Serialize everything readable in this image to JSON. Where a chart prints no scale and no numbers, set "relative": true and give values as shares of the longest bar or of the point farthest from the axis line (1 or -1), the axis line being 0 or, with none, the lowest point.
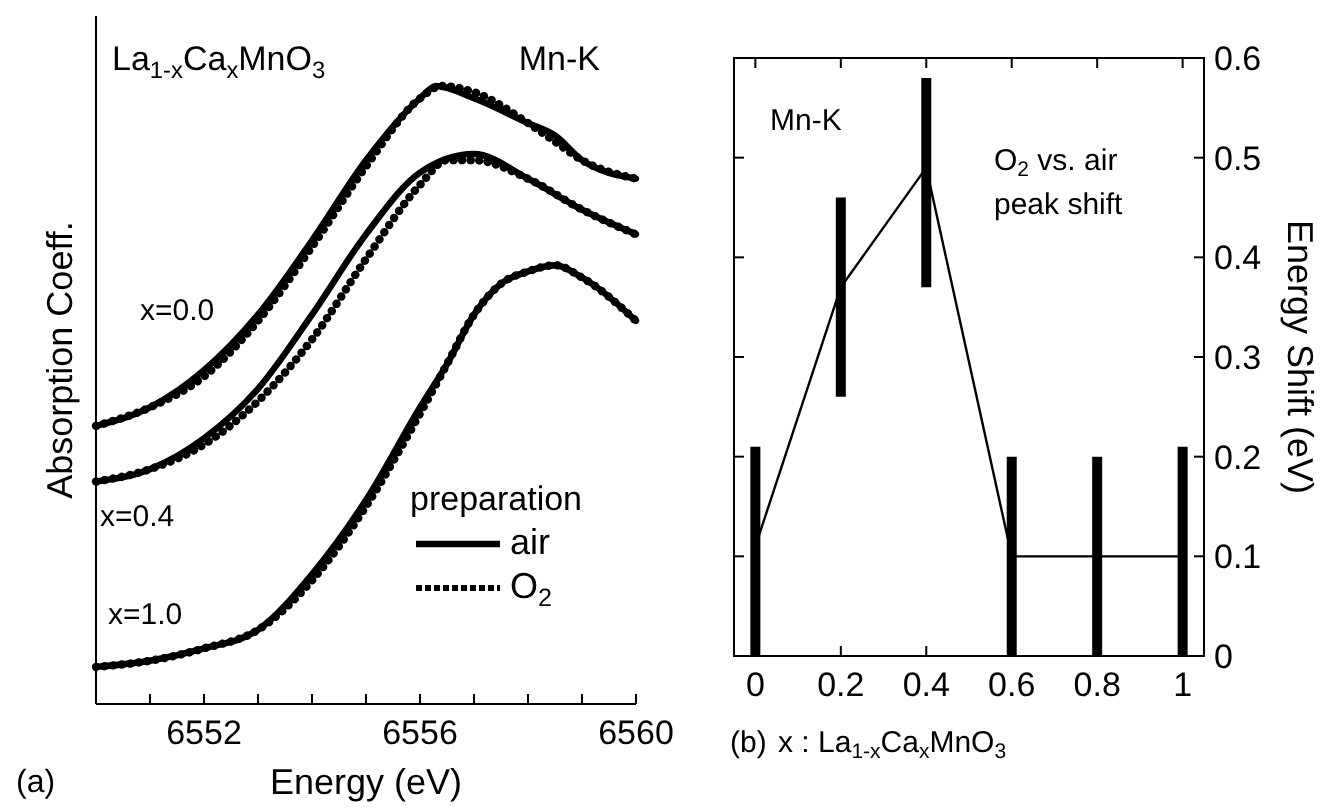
{
  "chart_data": [
    {
      "type": "line",
      "relative": true,
      "xlabel": "Energy (eV)",
      "ylabel": "Absorption Coeff.",
      "legend_title": "preparation",
      "legend": "bottom right",
      "tick_labels": "x",
      "xlim": [
        6550,
        6560
      ],
      "xticks": [
        {
          "value": 6551,
          "label": null
        },
        6552,
        {
          "value": 6553,
          "label": null
        },
        {
          "value": 6554,
          "label": null
        },
        {
          "value": 6555,
          "label": null
        },
        6556,
        {
          "value": 6557,
          "label": null
        },
        {
          "value": 6558,
          "label": null
        },
        {
          "value": 6559,
          "label": null
        },
        6560
      ],
      "annotations": [
        "La$_{1-x}$Ca$_{x}$MnO$_{3}$",
        "Mn-K",
        "x=0.0",
        "x=0.4",
        "x=1.0",
        "(a)"
      ],
      "series": [
        {
          "name": "air",
          "color": "#000000",
          "line_style": "solid",
          "x": [
            6550,
            6551,
            6552,
            6553,
            6554,
            6555,
            6556,
            6556.3,
            6557,
            6558,
            6558.5,
            6559,
            6560
          ],
          "values": [
            0.45,
            0.48,
            0.54,
            0.63,
            0.75,
            0.88,
            0.98,
            1.0,
            0.98,
            0.94,
            0.92,
            0.88,
            0.85
          ]
        },
        {
          "name": "O$_{2}$",
          "color": "#000000",
          "line_style": "dotted",
          "x": [
            6550,
            6551,
            6552,
            6553,
            6554,
            6555,
            6556,
            6556.4,
            6557,
            6558,
            6558.5,
            6559,
            6560
          ],
          "values": [
            0.45,
            0.48,
            0.53,
            0.62,
            0.74,
            0.87,
            0.98,
            1.0,
            0.99,
            0.94,
            0.91,
            0.88,
            0.85
          ]
        },
        {
          "color": "#000000",
          "line_style": "solid",
          "x": [
            6550,
            6551,
            6552,
            6553,
            6554,
            6555,
            6556,
            6557,
            6558,
            6559,
            6560
          ],
          "values": [
            0.36,
            0.38,
            0.43,
            0.51,
            0.63,
            0.76,
            0.86,
            0.89,
            0.85,
            0.8,
            0.76
          ]
        },
        {
          "color": "#000000",
          "line_style": "dotted",
          "x": [
            6550,
            6551,
            6552,
            6553,
            6554,
            6555,
            6556,
            6556.5,
            6557,
            6558,
            6559,
            6560
          ],
          "values": [
            0.36,
            0.38,
            0.42,
            0.49,
            0.59,
            0.72,
            0.84,
            0.88,
            0.88,
            0.85,
            0.8,
            0.76
          ]
        },
        {
          "color": "#000000",
          "line_style": "solid",
          "x": [
            6550,
            6551,
            6552,
            6553,
            6554,
            6555,
            6556,
            6556.5,
            6557,
            6557.5,
            6558,
            6558.5,
            6559,
            6560
          ],
          "values": [
            0.06,
            0.07,
            0.09,
            0.12,
            0.21,
            0.33,
            0.48,
            0.55,
            0.63,
            0.68,
            0.7,
            0.71,
            0.69,
            0.62
          ]
        },
        {
          "color": "#000000",
          "line_style": "dotted",
          "x": [
            6550,
            6551,
            6552,
            6553,
            6554,
            6555,
            6556,
            6556.5,
            6557,
            6557.5,
            6558,
            6558.5,
            6559,
            6560
          ],
          "values": [
            0.06,
            0.07,
            0.09,
            0.12,
            0.2,
            0.32,
            0.47,
            0.55,
            0.63,
            0.68,
            0.7,
            0.71,
            0.69,
            0.62
          ]
        }
      ]
    },
    {
      "type": "line",
      "xlabel": "x : La$_{1-x}$Ca$_{x}$MnO$_{3}$",
      "ylabel": "Energy Shift (eV)",
      "line_style": "solid",
      "xlim": [
        -0.05,
        1.05
      ],
      "xticks": [
        0,
        0.2,
        0.4,
        0.6,
        0.8,
        1
      ],
      "ylim": [
        0,
        0.6
      ],
      "yticks": [
        0,
        0.1,
        0.2,
        0.3,
        0.4,
        0.5,
        0.6
      ],
      "annotations": [
        "Mn-K",
        "O$_{2}$ vs. air",
        "peak shift",
        "(b)"
      ],
      "series": [
        {
          "color": "#000000",
          "x": [
            0,
            0.2,
            0.4,
            0.6,
            0.8,
            1
          ],
          "values": [
            0.11,
            0.37,
            0.49,
            0.1,
            0.1,
            0.1
          ],
          "errors": [
            [
              0,
              0.21
            ],
            [
              0.26,
              0.46
            ],
            [
              0.37,
              0.58
            ],
            [
              0,
              0.2
            ],
            [
              0,
              0.2
            ],
            [
              0,
              0.21
            ]
          ]
        }
      ]
    }
  ]
}
